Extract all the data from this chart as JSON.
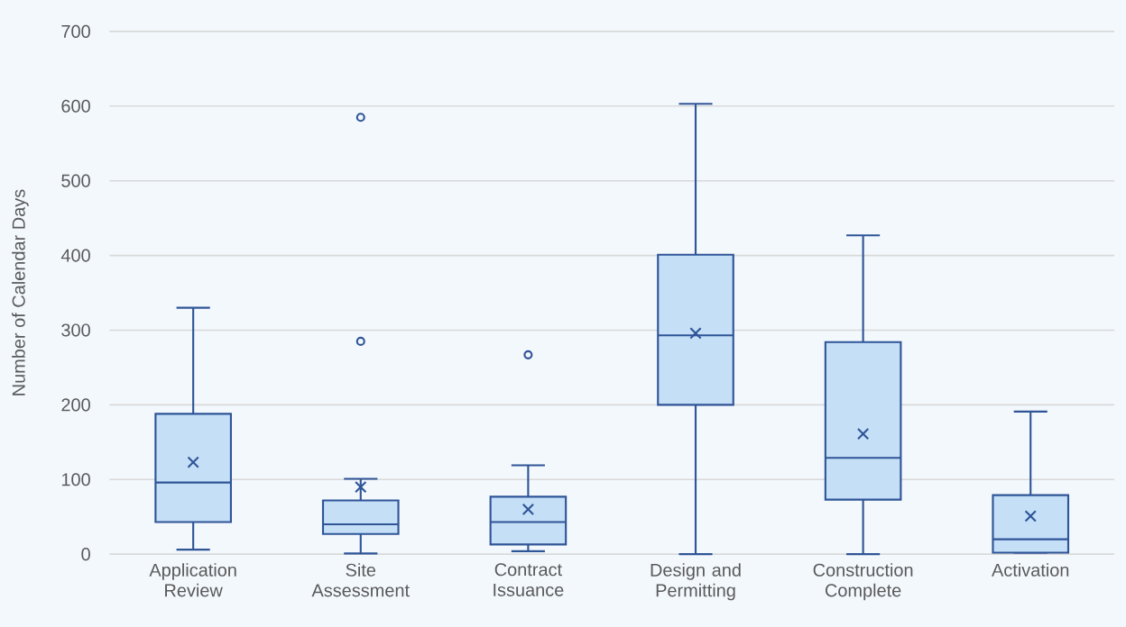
{
  "chart_data": {
    "type": "box",
    "categories": [
      "Application Review",
      "Site Assessment",
      "Contract Issuance",
      "Design and Permitting",
      "Construction Complete",
      "Activation"
    ],
    "series": [
      {
        "color": "#2f5597",
        "boxes": [
          {
            "low": 6,
            "q1": 43,
            "median": 96,
            "q3": 188,
            "high": 330,
            "mean": 123
          },
          {
            "low": 1,
            "q1": 27,
            "median": 40,
            "q3": 72,
            "high": 101,
            "mean": 90,
            "outliers": [
              585,
              285
            ]
          },
          {
            "low": 4,
            "q1": 13,
            "median": 43,
            "q3": 77,
            "high": 119,
            "mean": 60,
            "outliers": [
              267
            ]
          },
          {
            "low": 0,
            "q1": 200,
            "median": 293,
            "q3": 401,
            "high": 603,
            "mean": 296
          },
          {
            "low": 0,
            "q1": 73,
            "median": 129,
            "q3": 284,
            "high": 427,
            "mean": 161
          },
          {
            "low": 2,
            "q1": 2,
            "median": 20,
            "q3": 79,
            "high": 191,
            "mean": 51
          }
        ]
      }
    ],
    "ylabel": "Number of Calendar Days",
    "ylim": [
      0,
      700
    ],
    "yticks": [
      0,
      100,
      200,
      300,
      400,
      500,
      600,
      700
    ],
    "grid": "y"
  }
}
